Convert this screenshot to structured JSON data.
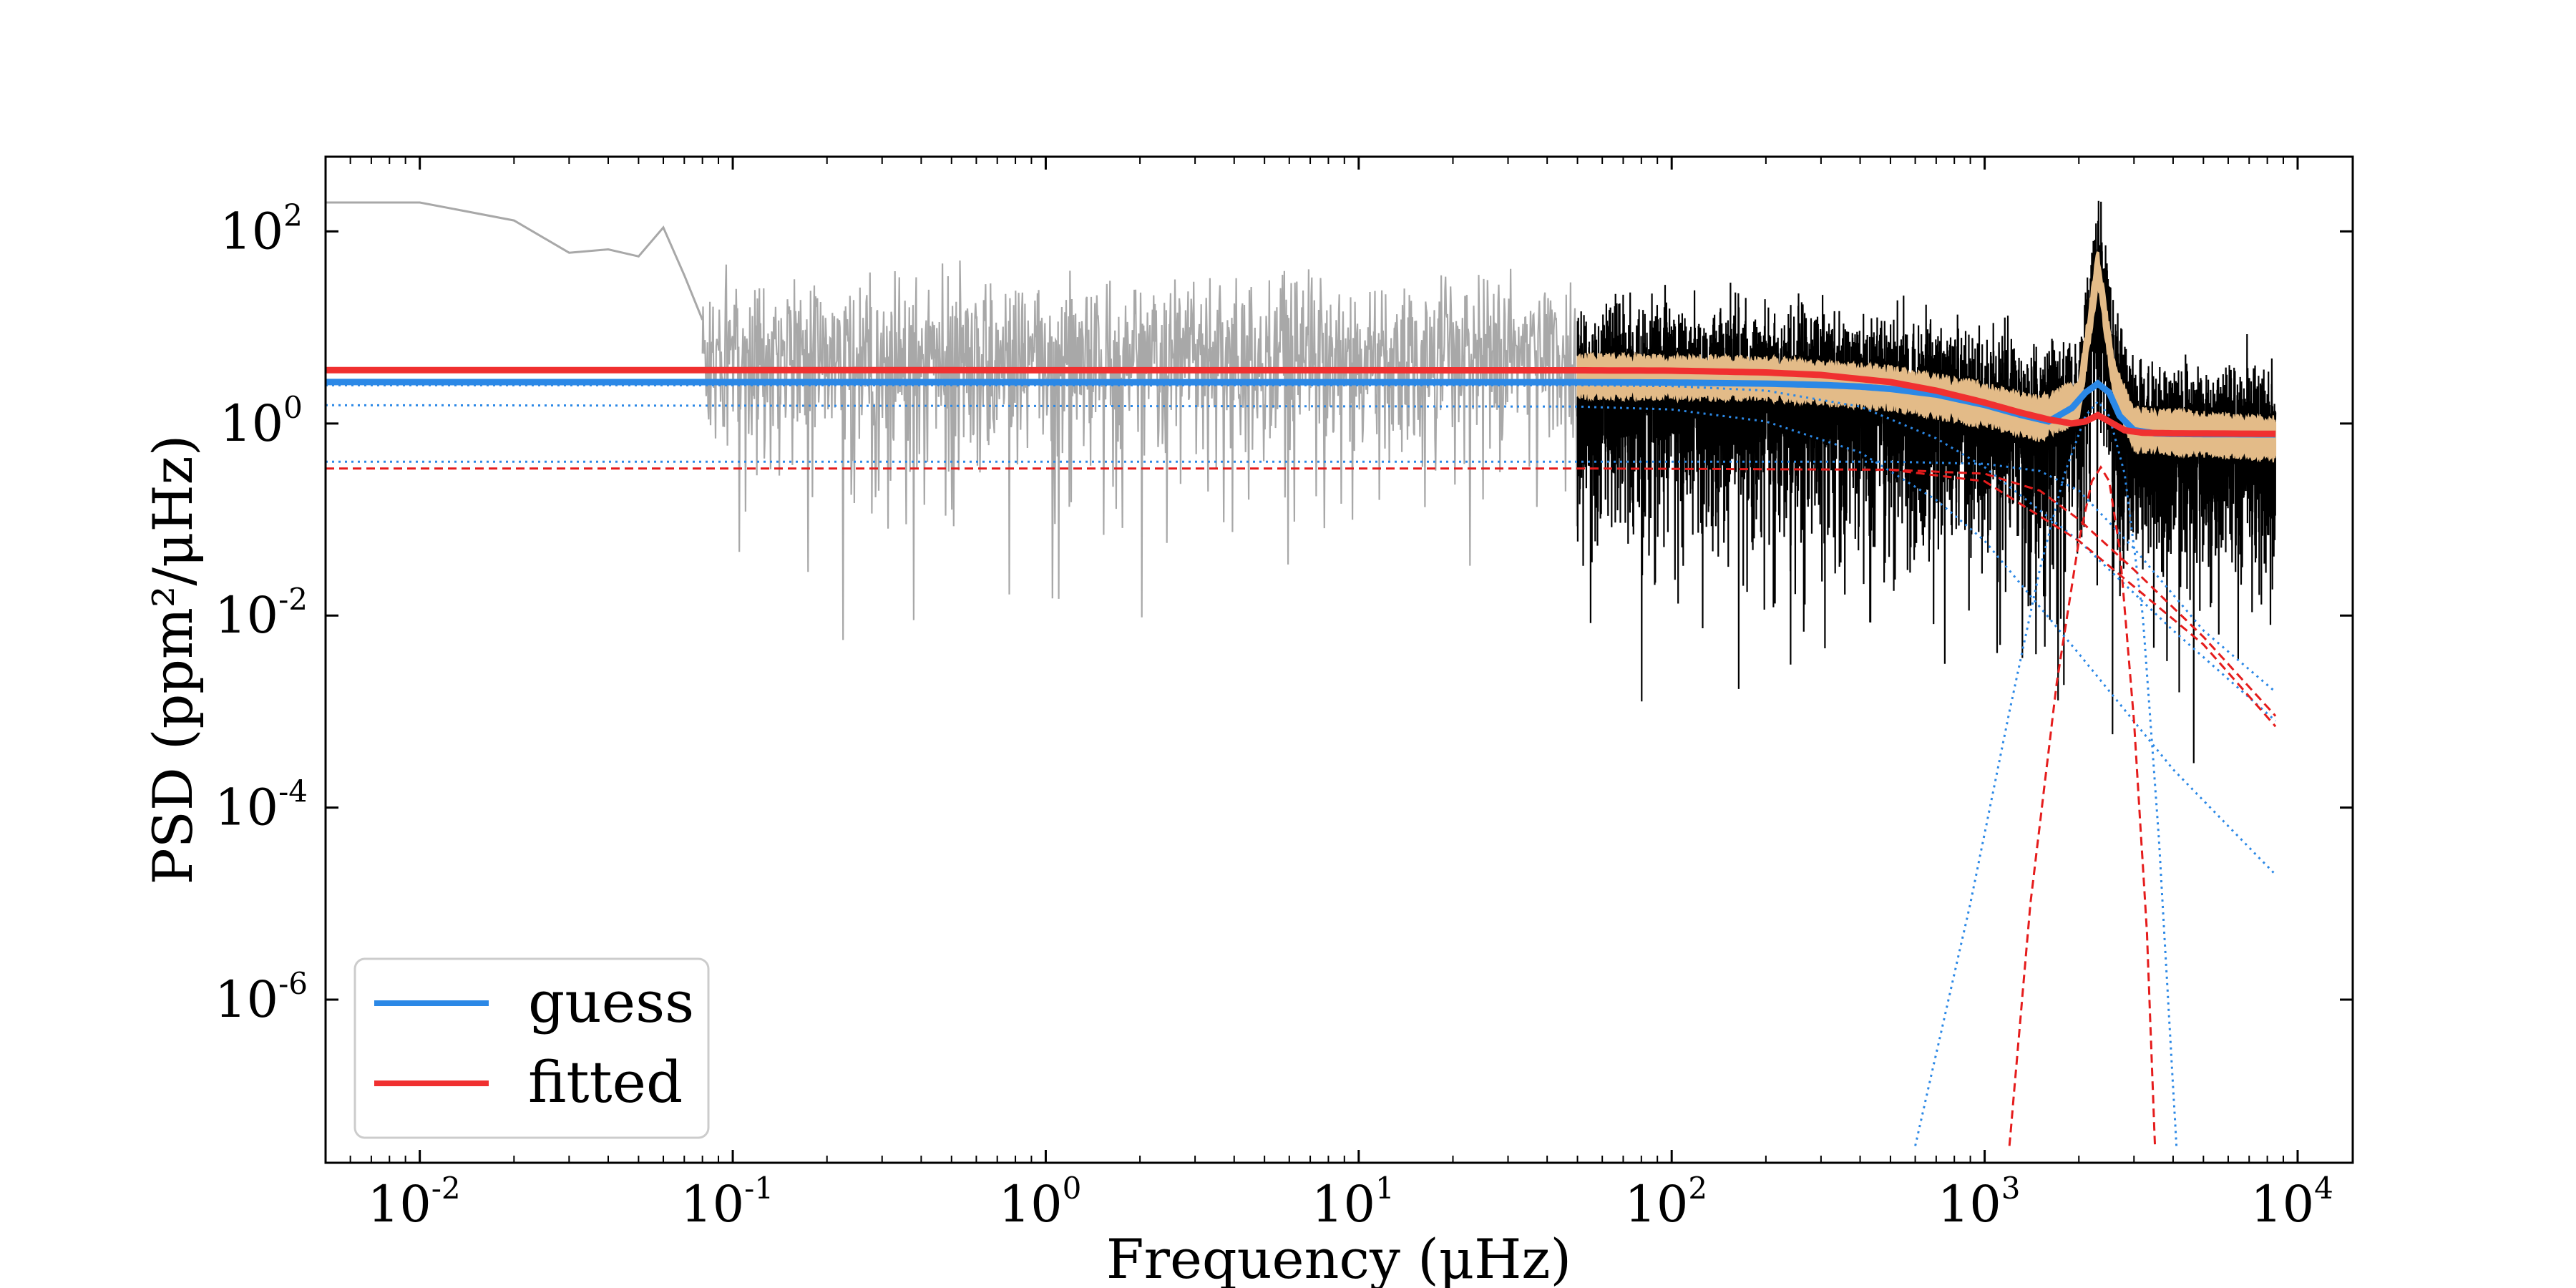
{
  "chart_data": {
    "type": "line",
    "title": "",
    "xlabel": "Frequency (μHz)",
    "ylabel": "PSD (ppm²/μHz)",
    "x_scale": "log",
    "y_scale": "log",
    "xlim": [
      0.005,
      15000
    ],
    "ylim": [
      2e-08,
      600
    ],
    "x_ticks": [
      {
        "value": 0.01,
        "label": "10",
        "exp": "-2"
      },
      {
        "value": 0.1,
        "label": "10",
        "exp": "-1"
      },
      {
        "value": 1,
        "label": "10",
        "exp": "0"
      },
      {
        "value": 10,
        "label": "10",
        "exp": "1"
      },
      {
        "value": 100,
        "label": "10",
        "exp": "2"
      },
      {
        "value": 1000,
        "label": "10",
        "exp": "3"
      },
      {
        "value": 10000,
        "label": "10",
        "exp": "4"
      }
    ],
    "y_ticks": [
      {
        "value": 1e-06,
        "label": "10",
        "exp": "-6"
      },
      {
        "value": 0.0001,
        "label": "10",
        "exp": "-4"
      },
      {
        "value": 0.01,
        "label": "10",
        "exp": "-2"
      },
      {
        "value": 1,
        "label": "10",
        "exp": "0"
      },
      {
        "value": 100,
        "label": "10",
        "exp": "2"
      }
    ],
    "grid": false,
    "legend_position": "lower-left",
    "legend": [
      {
        "name": "guess",
        "color": "#2b88e6"
      },
      {
        "name": "fitted",
        "color": "#f03030"
      }
    ],
    "spectrum": {
      "low_freq_color": "#a8a8a8",
      "high_freq_color": "#000000",
      "smoothed_color": "#e3bb88",
      "split_frequency": 50,
      "max_frequency": 8500,
      "low_freq_anchor_points": [
        [
          0.005,
          200
        ],
        [
          0.01,
          200
        ],
        [
          0.02,
          130
        ],
        [
          0.03,
          60
        ],
        [
          0.04,
          65
        ],
        [
          0.05,
          55
        ],
        [
          0.06,
          110
        ],
        [
          0.07,
          35
        ],
        [
          0.08,
          12
        ]
      ],
      "smoothed_envelope": [
        [
          50,
          3.6
        ],
        [
          200,
          3.4
        ],
        [
          500,
          2.7
        ],
        [
          1000,
          1.8
        ],
        [
          1500,
          1.3
        ],
        [
          2000,
          2.0
        ],
        [
          2300,
          50
        ],
        [
          2600,
          3.0
        ],
        [
          3000,
          1.0
        ],
        [
          8500,
          0.8
        ]
      ]
    },
    "series": [
      {
        "name": "guess",
        "color": "#2b88e6",
        "role": "total",
        "x": [
          0.005,
          50,
          100,
          200,
          300,
          400,
          500,
          700,
          1000,
          1300,
          1600,
          1900,
          2100,
          2300,
          2500,
          2700,
          3000,
          3500,
          4000,
          5000,
          8500
        ],
        "y": [
          2.7,
          2.69,
          2.67,
          2.6,
          2.52,
          2.42,
          2.29,
          2.0,
          1.56,
          1.23,
          1.05,
          1.45,
          2.1,
          2.6,
          2.1,
          1.2,
          0.85,
          0.79,
          0.78,
          0.775,
          0.77
        ]
      },
      {
        "name": "fitted",
        "color": "#f03030",
        "role": "total",
        "x": [
          0.005,
          50,
          100,
          200,
          300,
          500,
          700,
          1000,
          1300,
          1600,
          1900,
          2100,
          2300,
          2500,
          2800,
          3200,
          4000,
          8500
        ],
        "y": [
          3.6,
          3.58,
          3.55,
          3.4,
          3.2,
          2.7,
          2.2,
          1.65,
          1.3,
          1.1,
          1.0,
          1.05,
          1.22,
          1.05,
          0.85,
          0.8,
          0.79,
          0.78
        ]
      },
      {
        "name": "",
        "color": "#2b88e6",
        "role": "component",
        "x": [
          0.005,
          50,
          100,
          200,
          400,
          700,
          1000,
          2000,
          4000,
          8500
        ],
        "y": [
          2.5,
          2.5,
          2.45,
          2.2,
          1.5,
          0.7,
          0.35,
          0.06,
          0.007,
          0.0008
        ]
      },
      {
        "name": "",
        "color": "#2b88e6",
        "role": "component",
        "x": [
          0.005,
          50,
          100,
          200,
          400,
          700,
          1000,
          2000,
          4000,
          8500
        ],
        "y": [
          1.55,
          1.5,
          1.4,
          1.05,
          0.5,
          0.16,
          0.06,
          0.004,
          0.00025,
          2e-05
        ]
      },
      {
        "name": "",
        "color": "#2b88e6",
        "role": "component",
        "x": [
          0.005,
          50,
          500,
          1000,
          1500,
          2000,
          3000,
          5000,
          8500
        ],
        "y": [
          0.4,
          0.4,
          0.4,
          0.38,
          0.32,
          0.2,
          0.05,
          0.007,
          0.0016
        ]
      },
      {
        "name": "",
        "color": "#2b88e6",
        "role": "component",
        "x": [
          600,
          900,
          1200,
          1500,
          1800,
          2100,
          2300,
          2500,
          2800,
          3200,
          3600,
          4100
        ],
        "y": [
          3e-08,
          1e-05,
          0.001,
          0.03,
          0.3,
          1.2,
          1.7,
          1.2,
          0.3,
          0.01,
          5e-05,
          3e-08
        ]
      },
      {
        "name": "",
        "color": "#e51c1c",
        "role": "component",
        "x": [
          0.005,
          50,
          500,
          1000,
          2000,
          3000,
          5000,
          8500
        ],
        "y": [
          0.34,
          0.34,
          0.33,
          0.25,
          0.06,
          0.02,
          0.005,
          0.0007
        ]
      },
      {
        "name": "",
        "color": "#e51c1c",
        "role": "component",
        "x": [
          500,
          1000,
          1500,
          2000,
          3000,
          5000,
          8500
        ],
        "y": [
          0.33,
          0.3,
          0.2,
          0.1,
          0.03,
          0.006,
          0.0009
        ]
      },
      {
        "name": "",
        "color": "#e51c1c",
        "role": "component",
        "x": [
          1200,
          1400,
          1700,
          2000,
          2200,
          2350,
          2500,
          2700,
          3000,
          3300,
          3500
        ],
        "y": [
          3e-08,
          1e-05,
          0.002,
          0.06,
          0.25,
          0.35,
          0.25,
          0.05,
          0.0008,
          5e-06,
          3e-08
        ]
      }
    ]
  }
}
